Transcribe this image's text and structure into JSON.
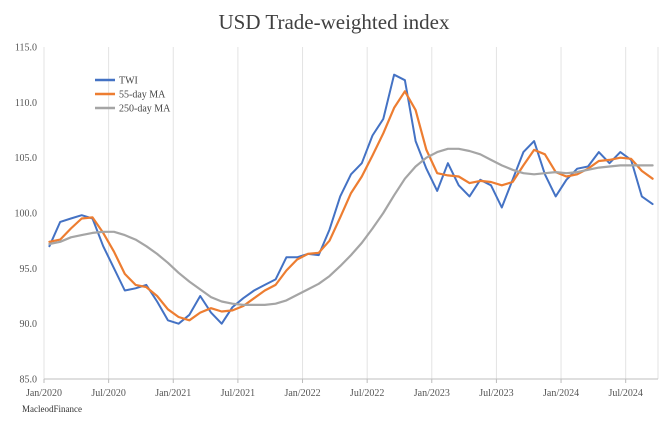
{
  "chart_data": {
    "type": "line",
    "title": "USD Trade-weighted index",
    "xlabel": "",
    "ylabel": "",
    "ylim": [
      85,
      115
    ],
    "y_ticks": [
      "85.0",
      "90.0",
      "95.0",
      "100.0",
      "105.0",
      "110.0",
      "115.0"
    ],
    "x_tick_labels": [
      "Jan/2020",
      "Jul/2020",
      "Jan/2021",
      "Jul/2021",
      "Jan/2022",
      "Jul/2022",
      "Jan/2023",
      "Jul/2023",
      "Jan/2024",
      "Jul/2024"
    ],
    "x_range": [
      "2020-01",
      "2024-09"
    ],
    "grid": "vertical",
    "legend_position": "top-left",
    "x": [
      "2020-01",
      "2020-02",
      "2020-03",
      "2020-04",
      "2020-05",
      "2020-06",
      "2020-07",
      "2020-08",
      "2020-09",
      "2020-10",
      "2020-11",
      "2020-12",
      "2021-01",
      "2021-02",
      "2021-03",
      "2021-04",
      "2021-05",
      "2021-06",
      "2021-07",
      "2021-08",
      "2021-09",
      "2021-10",
      "2021-11",
      "2021-12",
      "2022-01",
      "2022-02",
      "2022-03",
      "2022-04",
      "2022-05",
      "2022-06",
      "2022-07",
      "2022-08",
      "2022-09",
      "2022-10",
      "2022-11",
      "2022-12",
      "2023-01",
      "2023-02",
      "2023-03",
      "2023-04",
      "2023-05",
      "2023-06",
      "2023-07",
      "2023-08",
      "2023-09",
      "2023-10",
      "2023-11",
      "2023-12",
      "2024-01",
      "2024-02",
      "2024-03",
      "2024-04",
      "2024-05",
      "2024-06",
      "2024-07",
      "2024-08",
      "2024-09"
    ],
    "series": [
      {
        "name": "TWI",
        "color": "#4472c4",
        "values": [
          97.0,
          99.2,
          99.5,
          99.8,
          99.5,
          97.0,
          95.0,
          93.0,
          93.2,
          93.5,
          92.0,
          90.3,
          90.0,
          90.8,
          92.5,
          91.0,
          90.0,
          91.5,
          92.3,
          93.0,
          93.5,
          94.0,
          96.0,
          96.0,
          96.3,
          96.2,
          98.5,
          101.5,
          103.5,
          104.5,
          107.0,
          108.5,
          112.5,
          112.0,
          106.5,
          104.0,
          102.0,
          104.5,
          102.5,
          101.5,
          103.0,
          102.5,
          100.5,
          103.0,
          105.5,
          106.5,
          103.5,
          101.5,
          103.0,
          104.0,
          104.2,
          105.5,
          104.5,
          105.5,
          104.8,
          101.5,
          100.8
        ]
      },
      {
        "name": "55-day MA",
        "color": "#ed7d31",
        "values": [
          97.4,
          97.6,
          98.6,
          99.5,
          99.6,
          98.2,
          96.5,
          94.5,
          93.5,
          93.3,
          92.5,
          91.3,
          90.6,
          90.3,
          91.0,
          91.4,
          91.1,
          91.2,
          91.6,
          92.3,
          93.0,
          93.5,
          94.8,
          95.8,
          96.3,
          96.4,
          97.5,
          99.6,
          101.8,
          103.3,
          105.2,
          107.2,
          109.5,
          111.0,
          109.3,
          105.7,
          103.6,
          103.4,
          103.3,
          102.7,
          102.9,
          102.8,
          102.5,
          102.8,
          104.3,
          105.7,
          105.3,
          103.7,
          103.3,
          103.5,
          104.0,
          104.7,
          104.8,
          105.0,
          104.9,
          103.8,
          103.1
        ]
      },
      {
        "name": "250-day MA",
        "color": "#a5a5a5",
        "values": [
          97.2,
          97.4,
          97.8,
          98.0,
          98.2,
          98.3,
          98.3,
          98.0,
          97.6,
          97.0,
          96.3,
          95.5,
          94.6,
          93.8,
          93.1,
          92.4,
          92.0,
          91.8,
          91.7,
          91.7,
          91.7,
          91.8,
          92.1,
          92.6,
          93.1,
          93.6,
          94.3,
          95.2,
          96.2,
          97.3,
          98.6,
          100.0,
          101.6,
          103.1,
          104.2,
          105.0,
          105.5,
          105.8,
          105.8,
          105.6,
          105.3,
          104.8,
          104.3,
          103.9,
          103.6,
          103.5,
          103.6,
          103.7,
          103.6,
          103.7,
          103.9,
          104.1,
          104.2,
          104.3,
          104.3,
          104.3,
          104.3
        ]
      }
    ]
  },
  "source_label": "MacleodFinance"
}
